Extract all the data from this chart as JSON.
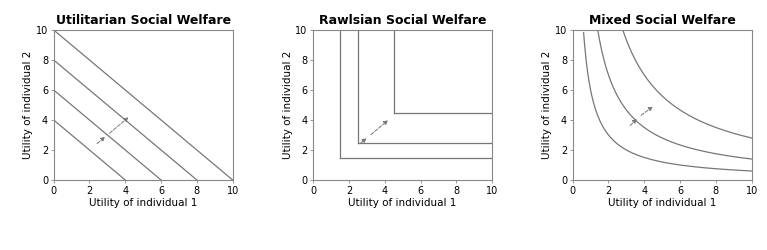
{
  "titles": [
    "Utilitarian Social Welfare",
    "Rawlsian Social Welfare",
    "Mixed Social Welfare"
  ],
  "xlabel": "Utility of individual 1",
  "ylabel": "Utility of individual 2",
  "xlim": [
    -0.5,
    10.5
  ],
  "ylim": [
    -0.5,
    10.5
  ],
  "xticks": [
    0,
    2,
    4,
    6,
    8,
    10
  ],
  "yticks": [
    0,
    2,
    4,
    6,
    8,
    10
  ],
  "line_color": "#777777",
  "arrow_color": "#777777",
  "bg_color": "#ffffff",
  "utilitarian_intercepts": [
    4,
    6,
    8,
    10
  ],
  "rawlsian_levels": [
    1.5,
    2.5,
    4.5
  ],
  "mixed_levels": [
    6.0,
    14.0,
    28.0
  ],
  "util_arrow_pairs": [
    [
      [
        2.3,
        2.3
      ],
      [
        3.0,
        3.0
      ]
    ],
    [
      [
        3.0,
        3.0
      ],
      [
        4.3,
        4.3
      ]
    ]
  ],
  "raw_arrow_pairs": [
    [
      [
        2.5,
        2.3
      ],
      [
        3.1,
        2.9
      ]
    ],
    [
      [
        3.1,
        2.9
      ],
      [
        4.3,
        4.1
      ]
    ]
  ],
  "mix_arrow_pairs": [
    [
      [
        3.1,
        3.5
      ],
      [
        3.7,
        4.2
      ]
    ],
    [
      [
        3.7,
        4.2
      ],
      [
        4.6,
        5.0
      ]
    ]
  ],
  "title_fontsize": 9,
  "label_fontsize": 7.5,
  "tick_fontsize": 7
}
